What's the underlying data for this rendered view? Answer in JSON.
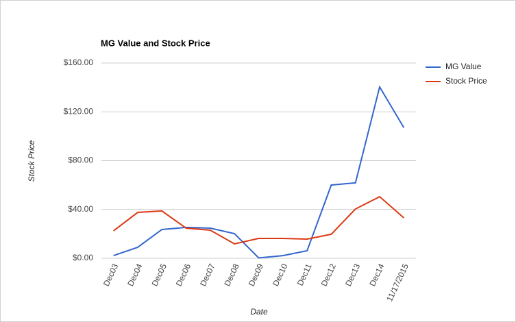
{
  "chart_data": {
    "type": "line",
    "title": "MG Value and Stock Price",
    "x_label": "Date",
    "y_label": "Stock Price",
    "categories": [
      "Dec03",
      "Dec04",
      "Dec05",
      "Dec06",
      "Dec07",
      "Dec08",
      "Dec09",
      "Dec10",
      "Dec11",
      "Dec12",
      "Dec13",
      "Dec14",
      "11/17/2015"
    ],
    "series": [
      {
        "name": "MG Value",
        "color": "#3366cc",
        "values": [
          2.2,
          9,
          23.6,
          25.3,
          24.7,
          20.2,
          0.3,
          2.2,
          6.2,
          60,
          61.8,
          140.4,
          107
        ]
      },
      {
        "name": "Stock Price",
        "color": "#dc3912",
        "values": [
          22.5,
          37.6,
          38.8,
          24.7,
          23,
          11.8,
          16.3,
          16.3,
          15.7,
          19.7,
          40.4,
          50.5,
          33.1
        ]
      }
    ],
    "ylim": [
      0,
      160
    ],
    "yticks": [
      {
        "value": 0,
        "label": "$0.00"
      },
      {
        "value": 40,
        "label": "$40.00"
      },
      {
        "value": 80,
        "label": "$80.00"
      },
      {
        "value": 120,
        "label": "$120.00"
      },
      {
        "value": 160,
        "label": "$160.00"
      }
    ],
    "grid": true,
    "legend": "right"
  }
}
